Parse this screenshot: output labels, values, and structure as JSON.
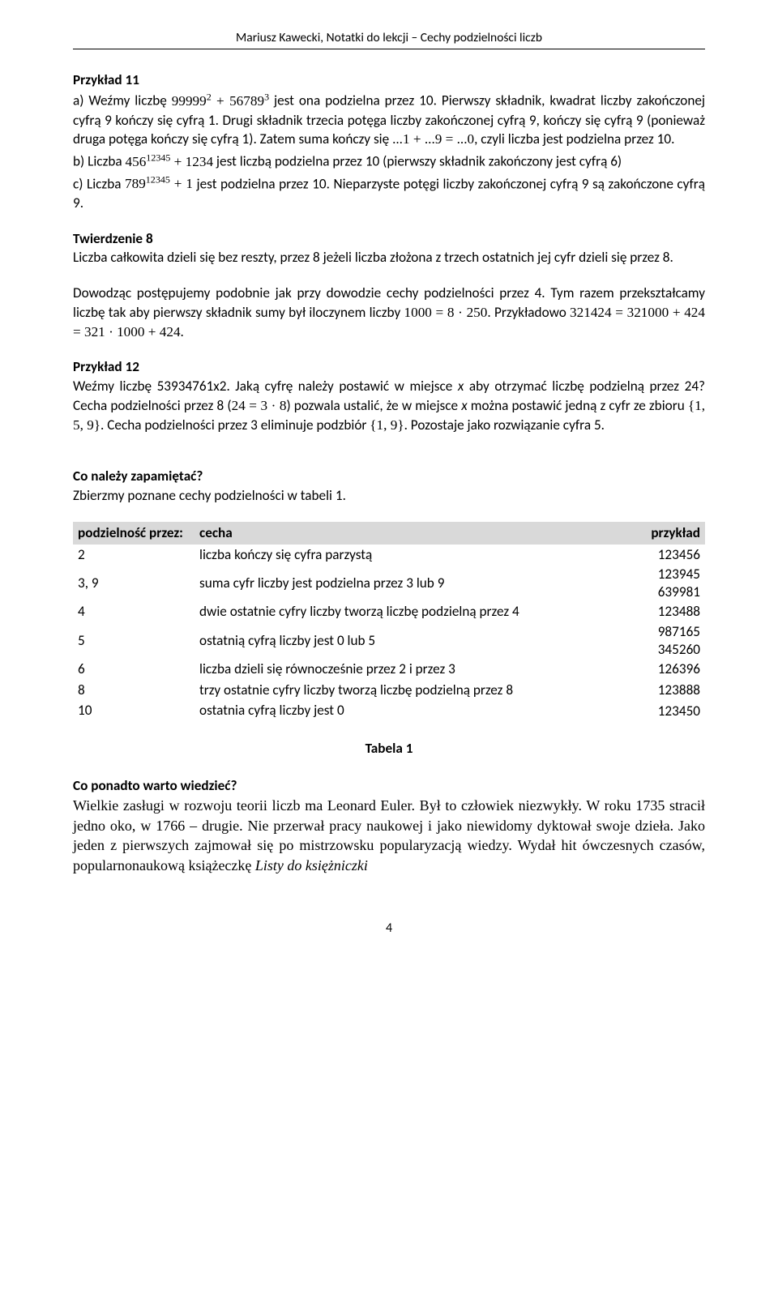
{
  "header": {
    "text": "Mariusz Kawecki, Notatki do lekcji – Cechy podzielności liczb"
  },
  "example11": {
    "title": "Przykład 11",
    "a_prefix": "a) Weźmy liczbę ",
    "a_formula": "99999² + 56789³",
    "a_suffix": " jest ona podzielna przez 10. Pierwszy składnik, kwadrat liczby zakończonej cyfrą 9 kończy się cyfrą 1. Drugi składnik trzecia potęga liczby zakończonej cyfrą 9, kończy się cyfrą 9 (ponieważ druga potęga kończy się cyfrą 1). Zatem suma kończy się ",
    "a_formula2": "...1 + ...9 = ...0",
    "a_suffix2": ", czyli liczba jest podzielna przez 10.",
    "b_prefix": "b) Liczba ",
    "b_formula": "456¹²³⁴⁵ + 1234",
    "b_suffix": " jest liczbą podzielna przez 10 (pierwszy składnik zakończony jest cyfrą 6)",
    "c_prefix": "c) Liczba ",
    "c_formula": "789¹²³⁴⁵ + 1",
    "c_suffix": " jest podzielna przez 10. Nieparzyste potęgi liczby zakończonej cyfrą 9 są zakończone cyfrą 9."
  },
  "theorem8": {
    "title": "Twierdzenie 8",
    "text": "Liczba całkowita dzieli się bez reszty, przez 8 jeżeli liczba złożona z trzech ostatnich jej cyfr dzieli się przez 8."
  },
  "proof": {
    "p1_prefix": "Dowodząc postępujemy podobnie jak przy dowodzie cechy podzielności przez 4. Tym razem przekształcamy liczbę tak aby pierwszy składnik sumy był iloczynem liczby ",
    "p1_formula": "1000 = 8 · 250",
    "p1_suffix": ". Przykładowo ",
    "p1_formula2": "321424 = 321000 + 424 = 321 · 1000 + 424",
    "p1_period": "."
  },
  "example12": {
    "title": "Przykład 12",
    "p_prefix": "Weźmy liczbę 53934761x2. Jaką cyfrę należy postawić w miejsce ",
    "p_x1": "x",
    "p_mid1": " aby otrzymać liczbę podzielną przez 24? Cecha podzielności przez 8 (",
    "p_formula1": "24 = 3 · 8",
    "p_mid2": ") pozwala ustalić, że w miejsce ",
    "p_x2": "x",
    "p_mid3": " można postawić jedną z cyfr ze zbioru ",
    "p_set1": "{1, 5, 9}",
    "p_mid4": ". Cecha podzielności przez 3 eliminuje podzbiór ",
    "p_set2": "{1, 9}",
    "p_suffix": ". Pozostaje jako rozwiązanie cyfra 5."
  },
  "summary": {
    "q1": "Co należy zapamiętać?",
    "q1text": "Zbierzmy poznane cechy podzielności w tabeli 1."
  },
  "table": {
    "h1": "podzielność przez:",
    "h2": "cecha",
    "h3": "przykład",
    "rows": [
      {
        "div": "2",
        "rule": "liczba kończy się cyfra parzystą",
        "ex": "123456"
      },
      {
        "div": "3, 9",
        "rule": "suma cyfr liczby jest podzielna przez 3 lub 9",
        "ex": "123945\n639981"
      },
      {
        "div": "4",
        "rule": "dwie ostatnie cyfry liczby tworzą liczbę podzielną przez 4",
        "ex": "123488"
      },
      {
        "div": "5",
        "rule": "ostatnią cyfrą liczby jest 0 lub 5",
        "ex": "987165\n345260"
      },
      {
        "div": "6",
        "rule": "liczba dzieli się równocześnie przez 2 i przez 3",
        "ex": "126396"
      },
      {
        "div": "8",
        "rule": "trzy ostatnie cyfry liczby tworzą liczbę podzielną przez 8",
        "ex": "123888"
      },
      {
        "div": "10",
        "rule": "ostatnia cyfrą liczby jest 0",
        "ex": "123450"
      }
    ],
    "caption": "Tabela 1"
  },
  "more": {
    "q": "Co ponadto warto wiedzieć?",
    "text_prefix": "Wielkie zasługi w rozwoju teorii liczb ma Leonard Euler. Był to człowiek niezwykły. W roku 1735 stracił jedno oko, w 1766 – drugie. Nie przerwał pracy naukowej i jako niewidomy dyktował swoje dzieła. Jako jeden z pierwszych zajmował się po mistrzowsku popularyzacją wiedzy. Wydał hit ówczesnych czasów, popularnonaukową książeczkę ",
    "text_italic": "Listy do księżniczki"
  },
  "page_number": "4"
}
